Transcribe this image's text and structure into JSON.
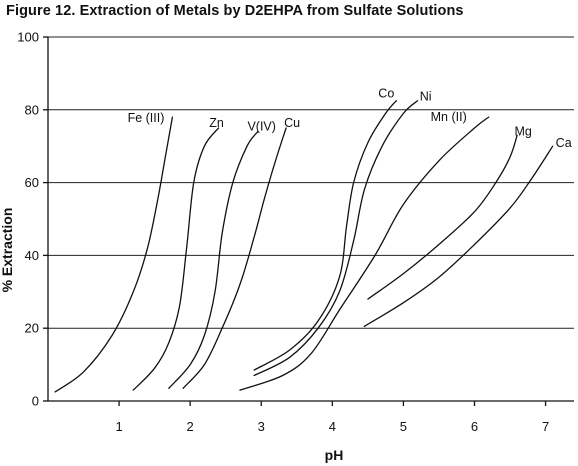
{
  "chart_data": {
    "type": "line",
    "title": "Figure 12. Extraction of Metals by D2EHPA from Sulfate Solutions",
    "xlabel": "pH",
    "ylabel": "% Extraction",
    "xlim": [
      0,
      7.4
    ],
    "ylim": [
      0,
      100
    ],
    "x_ticks": [
      1,
      2,
      3,
      4,
      5,
      6,
      7
    ],
    "y_ticks": [
      0,
      20,
      40,
      60,
      80,
      100
    ],
    "grid": "horizontal",
    "series": [
      {
        "name": "Fe (III)",
        "points": [
          [
            0.1,
            2.5
          ],
          [
            0.5,
            8
          ],
          [
            0.9,
            18
          ],
          [
            1.2,
            30
          ],
          [
            1.4,
            42
          ],
          [
            1.55,
            56
          ],
          [
            1.65,
            67
          ],
          [
            1.75,
            78
          ]
        ]
      },
      {
        "name": "Zn",
        "points": [
          [
            1.2,
            3
          ],
          [
            1.5,
            9
          ],
          [
            1.7,
            16
          ],
          [
            1.85,
            26
          ],
          [
            1.95,
            42
          ],
          [
            2.05,
            60
          ],
          [
            2.2,
            70
          ],
          [
            2.4,
            75
          ]
        ]
      },
      {
        "name": "V(IV)",
        "points": [
          [
            1.7,
            3.5
          ],
          [
            2.0,
            10
          ],
          [
            2.2,
            18
          ],
          [
            2.35,
            30
          ],
          [
            2.45,
            46
          ],
          [
            2.6,
            60
          ],
          [
            2.8,
            70
          ],
          [
            2.95,
            74
          ]
        ]
      },
      {
        "name": "Cu",
        "points": [
          [
            1.9,
            3.5
          ],
          [
            2.2,
            10
          ],
          [
            2.45,
            20
          ],
          [
            2.7,
            32
          ],
          [
            2.9,
            45
          ],
          [
            3.05,
            56
          ],
          [
            3.2,
            66
          ],
          [
            3.35,
            75
          ]
        ]
      },
      {
        "name": "Co",
        "points": [
          [
            2.9,
            8.5
          ],
          [
            3.4,
            14
          ],
          [
            3.8,
            22
          ],
          [
            4.1,
            34
          ],
          [
            4.2,
            48
          ],
          [
            4.3,
            60
          ],
          [
            4.5,
            71
          ],
          [
            4.75,
            79
          ],
          [
            4.9,
            82.5
          ]
        ]
      },
      {
        "name": "Ni",
        "points": [
          [
            2.9,
            7
          ],
          [
            3.4,
            12
          ],
          [
            3.8,
            20
          ],
          [
            4.1,
            30
          ],
          [
            4.3,
            44
          ],
          [
            4.45,
            58
          ],
          [
            4.7,
            70
          ],
          [
            5.0,
            79
          ],
          [
            5.2,
            82.5
          ]
        ]
      },
      {
        "name": "Mn (II)",
        "points": [
          [
            2.7,
            3
          ],
          [
            3.3,
            7
          ],
          [
            3.7,
            13
          ],
          [
            4.1,
            25
          ],
          [
            4.6,
            40
          ],
          [
            5.0,
            54
          ],
          [
            5.5,
            66
          ],
          [
            6.0,
            75
          ],
          [
            6.2,
            78
          ]
        ]
      },
      {
        "name": "Mg",
        "points": [
          [
            4.5,
            28
          ],
          [
            5.0,
            35
          ],
          [
            5.5,
            43
          ],
          [
            6.0,
            52
          ],
          [
            6.3,
            60
          ],
          [
            6.5,
            67
          ],
          [
            6.6,
            73
          ]
        ]
      },
      {
        "name": "Ca",
        "points": [
          [
            4.45,
            20.5
          ],
          [
            5.0,
            27
          ],
          [
            5.5,
            34
          ],
          [
            6.0,
            43
          ],
          [
            6.5,
            53
          ],
          [
            6.8,
            61
          ],
          [
            7.1,
            70
          ]
        ]
      }
    ]
  }
}
